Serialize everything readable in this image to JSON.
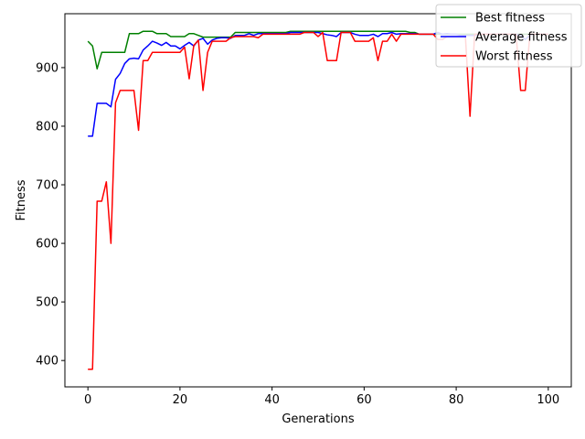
{
  "chart_data": {
    "type": "line",
    "xlabel": "Generations",
    "ylabel": "Fitness",
    "xlim": [
      -5,
      105
    ],
    "ylim": [
      355,
      992
    ],
    "xticks": [
      0,
      20,
      40,
      60,
      80,
      100
    ],
    "yticks": [
      400,
      500,
      600,
      700,
      800,
      900
    ],
    "grid": false,
    "legend_position": "top-right",
    "x": [
      0,
      1,
      2,
      3,
      4,
      5,
      6,
      7,
      8,
      9,
      10,
      11,
      12,
      13,
      14,
      15,
      16,
      17,
      18,
      19,
      20,
      21,
      22,
      23,
      24,
      25,
      26,
      27,
      28,
      29,
      30,
      31,
      32,
      33,
      34,
      35,
      36,
      37,
      38,
      39,
      40,
      41,
      42,
      43,
      44,
      45,
      46,
      47,
      48,
      49,
      50,
      51,
      52,
      53,
      54,
      55,
      56,
      57,
      58,
      59,
      60,
      61,
      62,
      63,
      64,
      65,
      66,
      67,
      68,
      69,
      70,
      71,
      72,
      73,
      74,
      75,
      76,
      77,
      78,
      79,
      80,
      81,
      82,
      83,
      84,
      85,
      86,
      87,
      88,
      89,
      90,
      91,
      92,
      93,
      94,
      95,
      96,
      97,
      98,
      99,
      100
    ],
    "series": [
      {
        "name": "Best fitness",
        "color": "#008000",
        "values": [
          945,
          937,
          898,
          926,
          926,
          926,
          926,
          926,
          926,
          958,
          958,
          958,
          962,
          962,
          962,
          958,
          958,
          958,
          953,
          953,
          953,
          953,
          958,
          958,
          955,
          952,
          952,
          952,
          952,
          952,
          952,
          952,
          960,
          960,
          960,
          960,
          960,
          960,
          960,
          960,
          960,
          960,
          960,
          960,
          962,
          962,
          962,
          962,
          962,
          962,
          962,
          962,
          962,
          962,
          962,
          962,
          962,
          962,
          962,
          962,
          962,
          962,
          962,
          962,
          962,
          962,
          962,
          962,
          962,
          962,
          960,
          960,
          957,
          957,
          957,
          957,
          957,
          957,
          957,
          957,
          957,
          957,
          957,
          957,
          957,
          957,
          957,
          957,
          957,
          957,
          957,
          957,
          957,
          957,
          957,
          957,
          957,
          957,
          957,
          957,
          957
        ]
      },
      {
        "name": "Average fitness",
        "color": "#0000ff",
        "values": [
          783,
          783,
          839,
          839,
          839,
          833,
          880,
          890,
          907,
          915,
          916,
          915,
          930,
          937,
          945,
          942,
          938,
          943,
          937,
          937,
          932,
          938,
          943,
          937,
          947,
          950,
          940,
          947,
          950,
          951,
          951,
          950,
          955,
          955,
          955,
          958,
          955,
          958,
          958,
          958,
          958,
          958,
          958,
          958,
          960,
          960,
          960,
          960,
          960,
          960,
          960,
          958,
          956,
          955,
          953,
          960,
          960,
          960,
          957,
          955,
          955,
          955,
          957,
          953,
          958,
          958,
          960,
          957,
          958,
          958,
          958,
          958,
          957,
          957,
          957,
          957,
          960,
          957,
          958,
          957,
          957,
          955,
          955,
          955,
          955,
          957,
          957,
          957,
          957,
          957,
          957,
          957,
          957,
          957,
          955,
          948,
          955,
          957,
          957,
          957,
          957
        ]
      },
      {
        "name": "Worst fitness",
        "color": "#ff0000",
        "values": [
          385,
          385,
          672,
          672,
          705,
          600,
          840,
          861,
          861,
          861,
          861,
          793,
          912,
          912,
          926,
          926,
          926,
          926,
          926,
          926,
          926,
          935,
          881,
          938,
          947,
          861,
          926,
          945,
          945,
          945,
          945,
          951,
          953,
          953,
          953,
          953,
          953,
          951,
          957,
          957,
          957,
          957,
          957,
          957,
          957,
          957,
          957,
          960,
          960,
          960,
          953,
          960,
          912,
          912,
          912,
          960,
          960,
          960,
          945,
          945,
          945,
          945,
          951,
          912,
          945,
          945,
          957,
          945,
          957,
          957,
          957,
          957,
          957,
          957,
          957,
          957,
          948,
          948,
          953,
          953,
          953,
          953,
          953,
          817,
          957,
          957,
          957,
          957,
          957,
          957,
          957,
          957,
          957,
          957,
          861,
          861,
          957,
          957,
          957,
          957,
          957
        ]
      }
    ]
  }
}
